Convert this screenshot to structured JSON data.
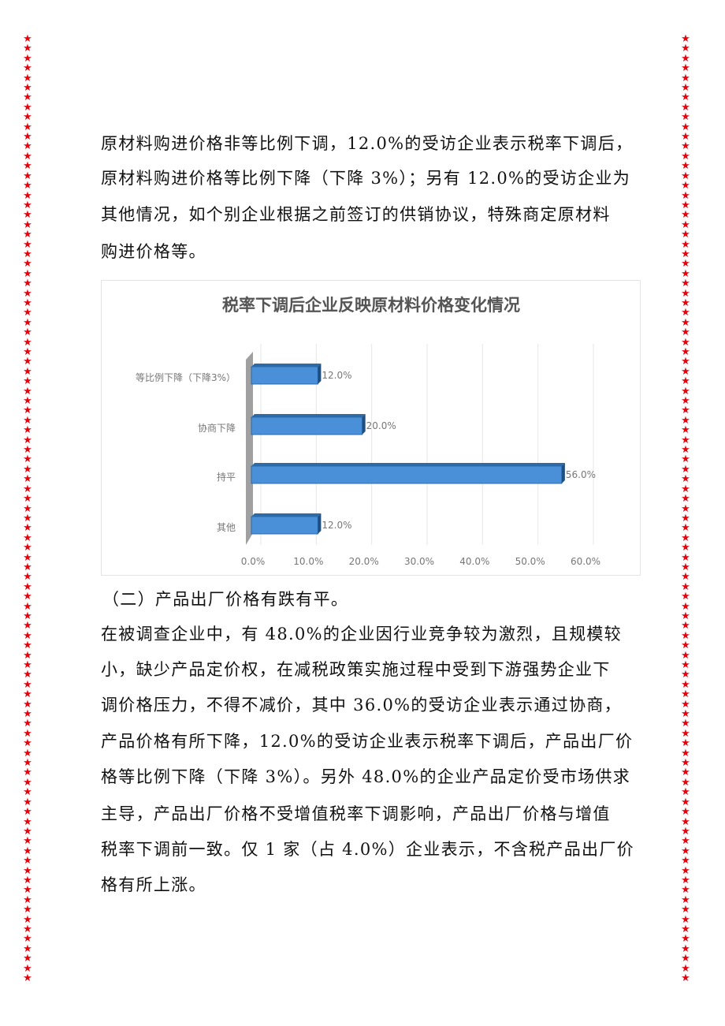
{
  "decoration": {
    "icon": "star-icon",
    "color": "#e8000b"
  },
  "para1": [
    "原材料购进价格非等比例下调，12.0%的受访企业表示税率下调后，",
    "原材料购进价格等比例下降（下降 3%）；另有 12.0%的受访企业为",
    "其他情况，如个别企业根据之前签订的供销协议，特殊商定原材料",
    "购进价格等。"
  ],
  "heading2": "（二）产品出厂价格有跌有平。",
  "para2": [
    "在被调查企业中，有 48.0%的企业因行业竞争较为激烈，且规模较",
    "小，缺少产品定价权，在减税政策实施过程中受到下游强势企业下",
    "调价格压力，不得不减价，其中 36.0%的受访企业表示通过协商，",
    "产品价格有所下降，12.0%的受访企业表示税率下调后，产品出厂价",
    "格等比例下降（下降 3%）。另外 48.0%的企业产品定价受市场供求",
    "主导，产品出厂价格不受增值税率下调影响，产品出厂价格与增值",
    "税率下调前一致。仅 1 家（占 4.0%）企业表示，不含税产品出厂价",
    "格有所上涨。"
  ],
  "chart_data": {
    "type": "bar",
    "orientation": "horizontal",
    "title": "税率下调后企业反映原材料价格变化情况",
    "categories": [
      "等比例下降（下降3%）",
      "协商下降",
      "持平",
      "其他"
    ],
    "values": [
      12.0,
      20.0,
      56.0,
      12.0
    ],
    "data_labels": [
      "12.0%",
      "20.0%",
      "56.0%",
      "12.0%"
    ],
    "xlim": [
      0,
      60
    ],
    "xticks": [
      "0.0%",
      "10.0%",
      "20.0%",
      "30.0%",
      "40.0%",
      "50.0%",
      "60.0%"
    ],
    "grid": true,
    "bar_color": "#4a90d9",
    "style": "3d"
  }
}
